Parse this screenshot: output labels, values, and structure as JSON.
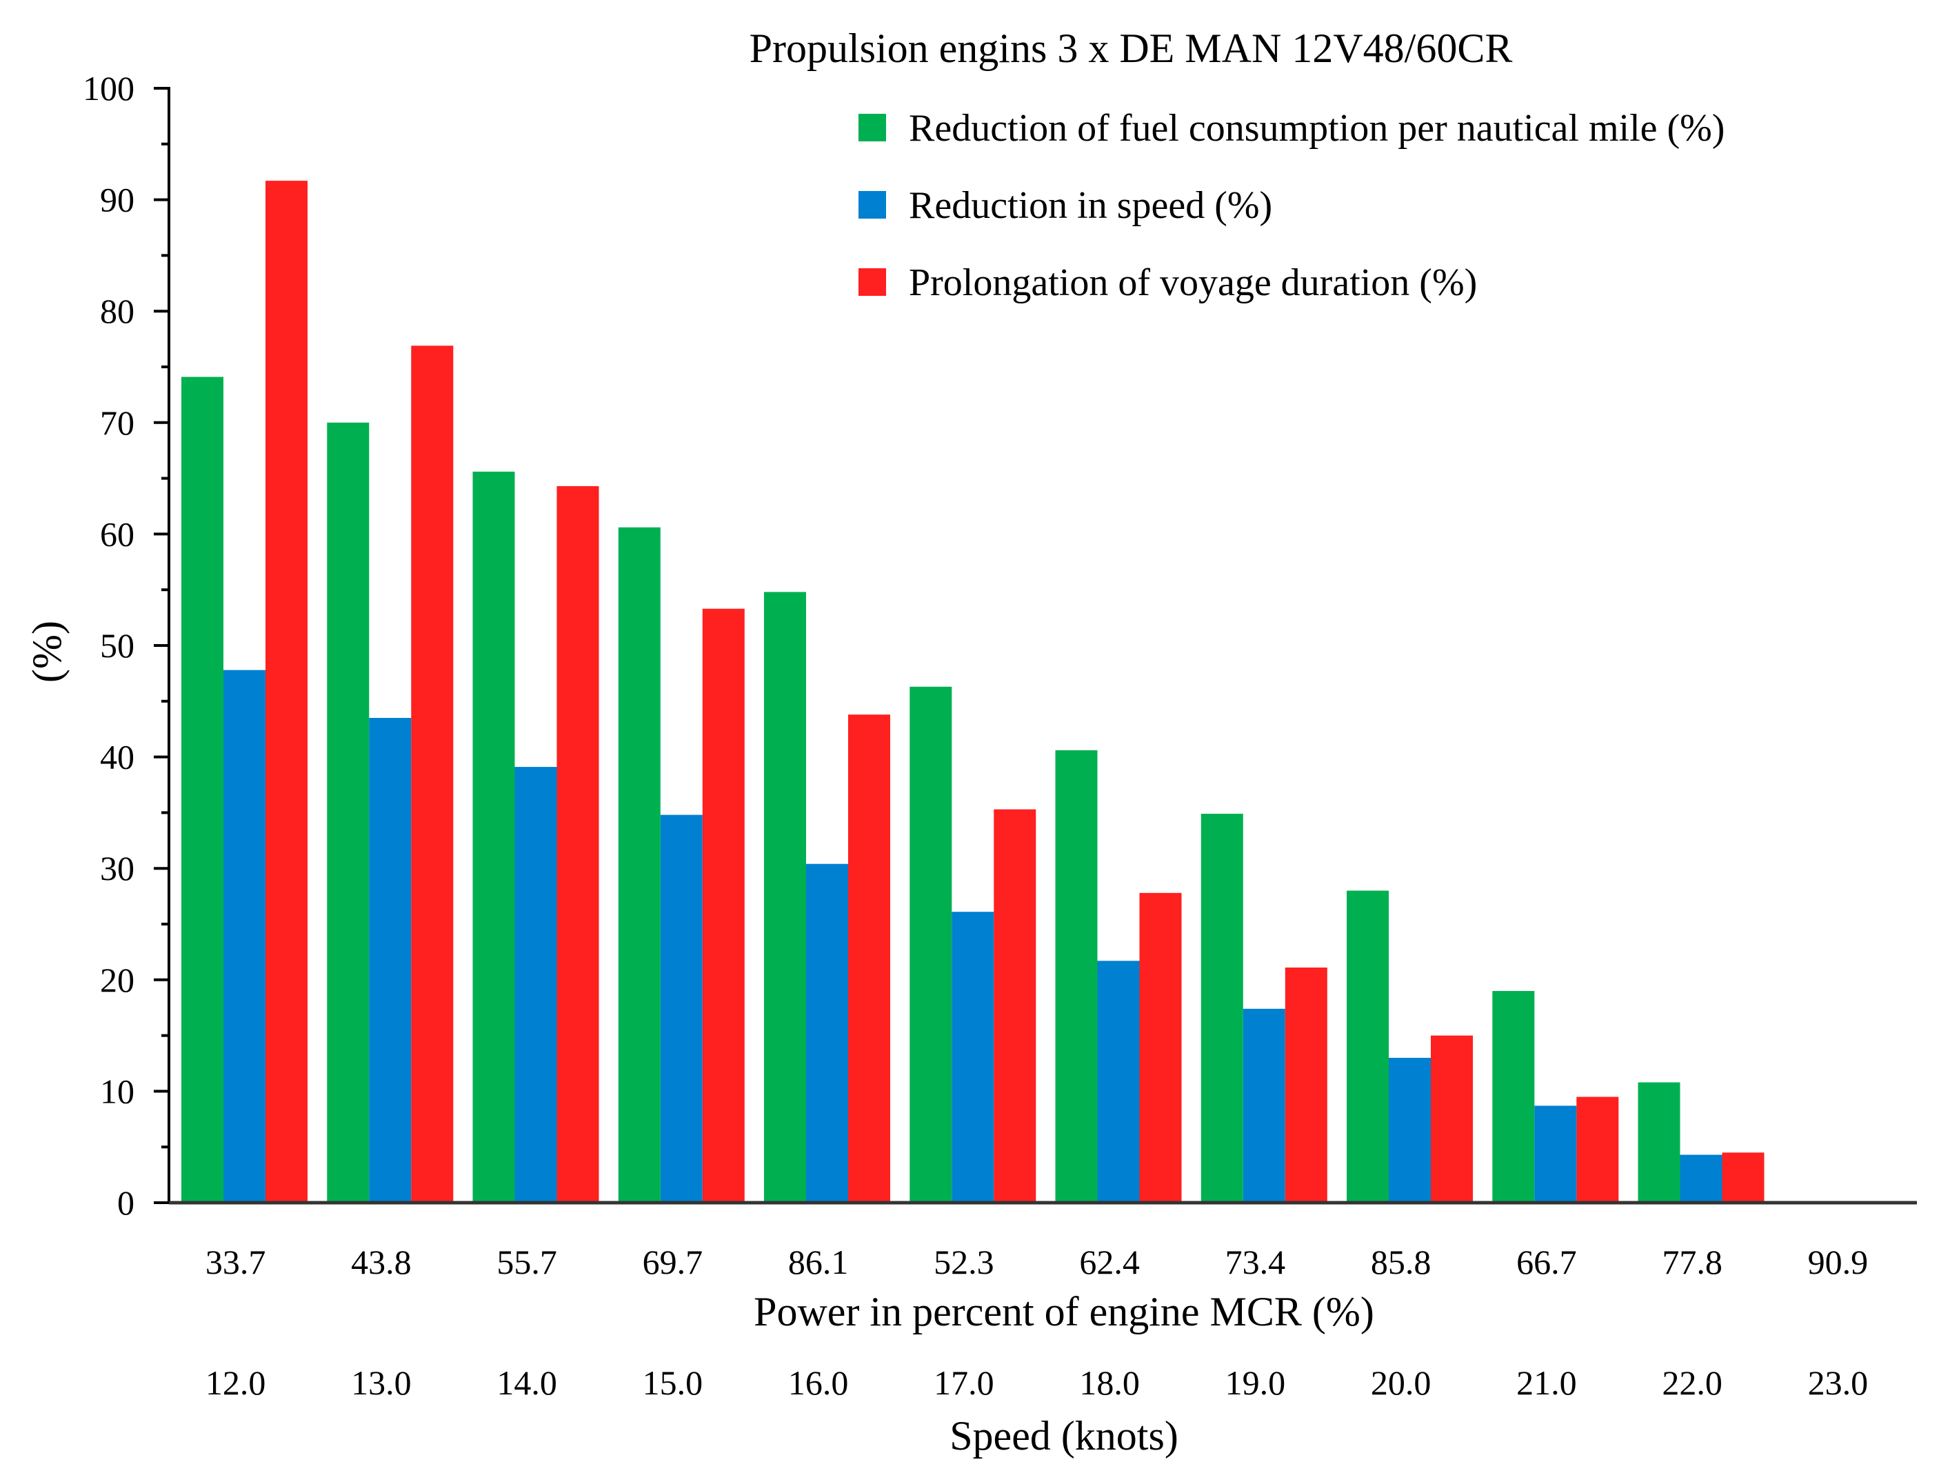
{
  "chart_data": {
    "type": "bar",
    "title": "Propulsion  engins 3 x DE MAN 12V48/60CR",
    "ylabel": "(%)",
    "ylim": [
      0,
      100
    ],
    "yticks": [
      "0",
      "10",
      "20",
      "30",
      "40",
      "50",
      "60",
      "70",
      "80",
      "90",
      "100"
    ],
    "grid": false,
    "legend_position": "top-right",
    "categories": [
      "33.7",
      "43.8",
      "55.7",
      "69.7",
      "86.1",
      "52.3",
      "62.4",
      "73.4",
      "85.8",
      "66.7",
      "77.8",
      "90.9"
    ],
    "xlabel": "Power in percent of engine MCR (%)",
    "secondary_categories": [
      "12.0",
      "13.0",
      "14.0",
      "15.0",
      "16.0",
      "17.0",
      "18.0",
      "19.0",
      "20.0",
      "21.0",
      "22.0",
      "23.0"
    ],
    "secondary_xlabel": "Speed (knots)",
    "series": [
      {
        "name": "Reduction of fuel consumption per nautical mile (%)",
        "color": "#00b050",
        "values": [
          74.1,
          70.0,
          65.6,
          60.6,
          54.8,
          46.3,
          40.6,
          34.9,
          28.0,
          19.0,
          10.8,
          0
        ]
      },
      {
        "name": "Reduction in speed (%)",
        "color": "#0080d0",
        "values": [
          47.8,
          43.5,
          39.1,
          34.8,
          30.4,
          26.1,
          21.7,
          17.4,
          13.0,
          8.7,
          4.3,
          0
        ]
      },
      {
        "name": "Prolongation of voyage duration (%)",
        "color": "#ff2020",
        "values": [
          91.7,
          76.9,
          64.3,
          53.3,
          43.8,
          35.3,
          27.8,
          21.1,
          15.0,
          9.5,
          4.5,
          0
        ]
      }
    ]
  }
}
